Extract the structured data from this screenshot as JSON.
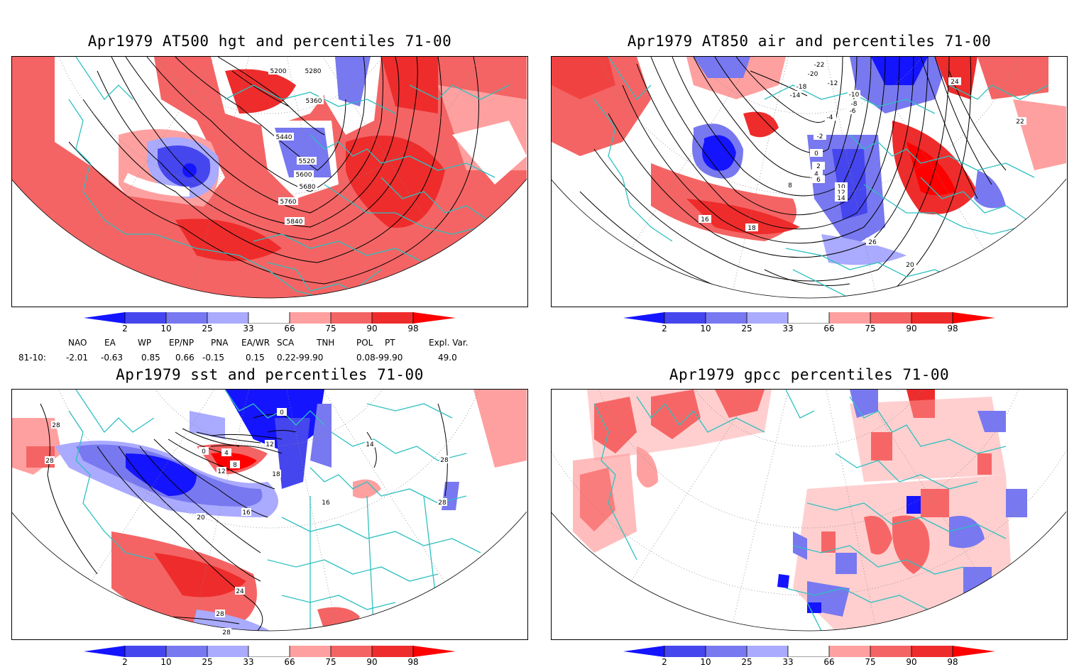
{
  "panels": [
    {
      "id": "p1",
      "title": "Apr1979 AT500 hgt and percentiles 71-00",
      "contour_labels": [
        "5200",
        "5280",
        "5360",
        "5440",
        "5520",
        "5600",
        "5680",
        "5760",
        "5840"
      ]
    },
    {
      "id": "p2",
      "title": "Apr1979 AT850 air and percentiles 71-00",
      "contour_labels": [
        "-22",
        "-20",
        "-18",
        "-14",
        "-12",
        "-10",
        "-8",
        "-6",
        "-4",
        "-2",
        "0",
        "2",
        "4",
        "6",
        "8",
        "10",
        "12",
        "14",
        "16",
        "18",
        "20",
        "22",
        "24",
        "26"
      ]
    },
    {
      "id": "p3",
      "title": "Apr1979 sst and percentiles 71-00",
      "contour_labels": [
        "0",
        "4",
        "8",
        "12",
        "14",
        "16",
        "18",
        "20",
        "24",
        "28"
      ]
    },
    {
      "id": "p4",
      "title": "Apr1979 gpcc percentiles 71-00",
      "contour_labels": []
    }
  ],
  "colorbar": {
    "ticks": [
      "2",
      "10",
      "25",
      "33",
      "66",
      "75",
      "90",
      "98"
    ],
    "colors": {
      "b1": "#1414ff",
      "b2": "#4646ee",
      "b3": "#7878f0",
      "b4": "#aaaaff",
      "r1": "#ffa0a0",
      "r2": "#f46464",
      "r3": "#ee2c2c",
      "r4": "#ff0000"
    }
  },
  "teleconnections": {
    "headers": [
      "NAO",
      "EA",
      "WP",
      "EP/NP",
      "PNA",
      "EA/WR",
      "SCA",
      "TNH",
      "POL",
      "PT",
      "Expl. Var."
    ],
    "row_label": "81-10:",
    "values": [
      "-2.01",
      "-0.63",
      "0.85",
      "0.66",
      "-0.15",
      "0.15",
      "0.22-99.90",
      "0.08-99.90",
      "49.0"
    ]
  },
  "map_colors": {
    "coast": "#2fc0c0",
    "contour": "#000000",
    "grid": "#888888"
  }
}
